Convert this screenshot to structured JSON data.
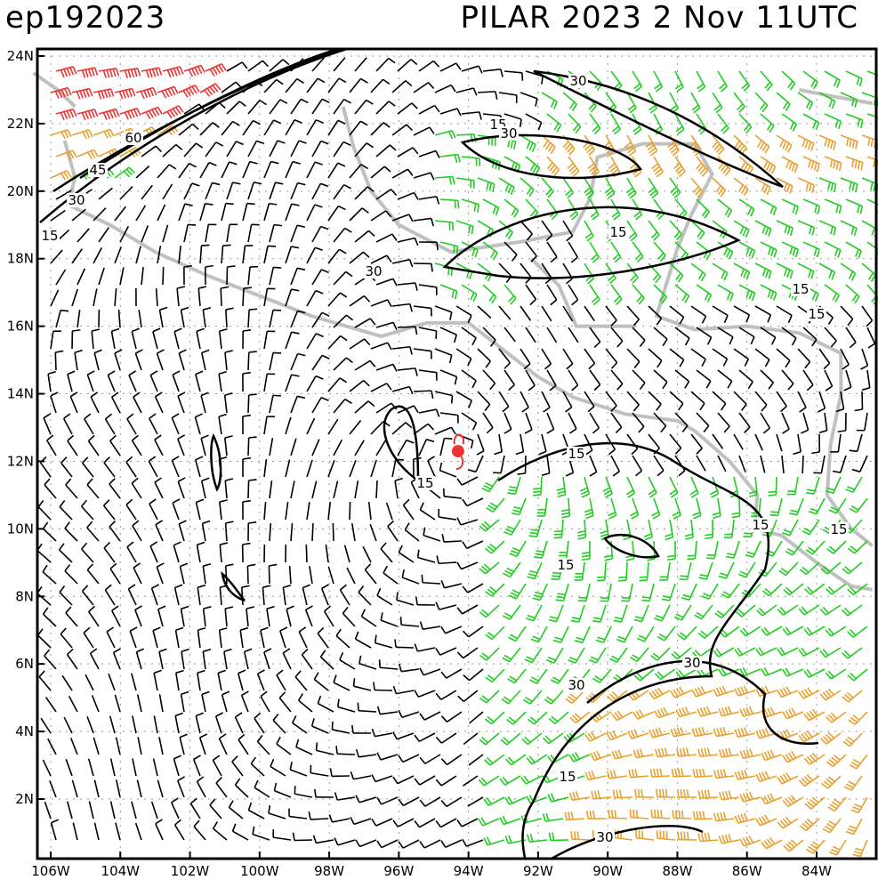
{
  "header": {
    "storm_id": "ep192023",
    "storm_label": "PILAR 2023   2 Nov 11UTC"
  },
  "map": {
    "lon_range": [
      -106.5,
      -82.4
    ],
    "lat_range": [
      0.2,
      24.2
    ],
    "lat_ticks": [
      "24N",
      "22N",
      "20N",
      "18N",
      "16N",
      "14N",
      "12N",
      "10N",
      "8N",
      "6N",
      "4N",
      "2N"
    ],
    "lat_values": [
      24,
      22,
      20,
      18,
      16,
      14,
      12,
      10,
      8,
      6,
      4,
      2
    ],
    "lon_ticks": [
      "106W",
      "104W",
      "102W",
      "100W",
      "98W",
      "96W",
      "94W",
      "92W",
      "90W",
      "88W",
      "86W",
      "84W"
    ],
    "lon_values": [
      -106,
      -104,
      -102,
      -100,
      -98,
      -96,
      -94,
      -92,
      -90,
      -88,
      -86,
      -84
    ],
    "storm_center": {
      "lon": -94.3,
      "lat": 12.3
    },
    "contour_labels": [
      "30",
      "15",
      "30",
      "60",
      "45",
      "30",
      "15",
      "30",
      "15",
      "15",
      "15",
      "15",
      "15",
      "15",
      "15",
      "15",
      "30",
      "30",
      "15",
      "30"
    ],
    "colors": {
      "calm": "#000000",
      "moderate": "#22cc22",
      "strong": "#e8a030",
      "severe": "#ee3333",
      "coast": "#c0c0c0",
      "storm": "#ee3333"
    },
    "coastlines": [
      [
        [
          -105.6,
          21.5
        ],
        [
          -105.3,
          20.4
        ],
        [
          -105.5,
          19.6
        ],
        [
          -104.3,
          19.0
        ],
        [
          -103,
          18.2
        ],
        [
          -101.5,
          17.5
        ],
        [
          -100,
          16.9
        ],
        [
          -98.5,
          16.3
        ],
        [
          -96.5,
          15.7
        ],
        [
          -95.2,
          16.1
        ],
        [
          -94,
          16.1
        ],
        [
          -93,
          15.3
        ],
        [
          -92,
          14.5
        ],
        [
          -91,
          13.9
        ],
        [
          -89.5,
          13.4
        ],
        [
          -88,
          13.2
        ],
        [
          -87.5,
          12.9
        ],
        [
          -86.5,
          12
        ],
        [
          -85.7,
          11
        ],
        [
          -85.8,
          10
        ],
        [
          -85,
          9.8
        ],
        [
          -84,
          9
        ],
        [
          -83,
          8.3
        ],
        [
          -82.4,
          8.2
        ]
      ],
      [
        [
          -97.6,
          22.5
        ],
        [
          -97.3,
          21.3
        ],
        [
          -96.8,
          20
        ],
        [
          -96,
          19
        ],
        [
          -94.5,
          18.2
        ],
        [
          -92.5,
          18.5
        ],
        [
          -91,
          18.8
        ],
        [
          -90.5,
          19.8
        ],
        [
          -90.3,
          21
        ],
        [
          -89,
          21.4
        ],
        [
          -87.5,
          21.4
        ],
        [
          -87,
          20.5
        ],
        [
          -87.6,
          19.3
        ],
        [
          -88,
          18.3
        ],
        [
          -88.6,
          16.3
        ],
        [
          -87.5,
          15.9
        ],
        [
          -86,
          16
        ],
        [
          -84.5,
          15.8
        ],
        [
          -83.3,
          15.2
        ],
        [
          -83.3,
          14
        ],
        [
          -83.6,
          12.5
        ],
        [
          -83.7,
          11
        ],
        [
          -83,
          10
        ],
        [
          -82.4,
          9.5
        ]
      ],
      [
        [
          -106.5,
          23.5
        ],
        [
          -105.8,
          23
        ],
        [
          -105.3,
          22.5
        ]
      ],
      [
        [
          -92.2,
          18
        ],
        [
          -91.4,
          17.2
        ],
        [
          -90.9,
          16
        ],
        [
          -89.2,
          16
        ]
      ],
      [
        [
          -84.5,
          23
        ],
        [
          -83.5,
          22.8
        ],
        [
          -82.4,
          22.6
        ]
      ]
    ]
  }
}
